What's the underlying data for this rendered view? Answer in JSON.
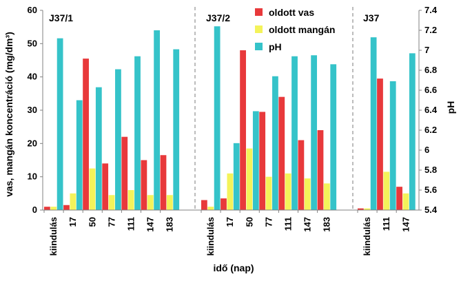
{
  "chart_data": {
    "type": "bar",
    "colors": {
      "oldott_vas": "#e8393b",
      "oldott_mangan": "#f4f35a",
      "ph": "#35c3c9"
    },
    "legend_position": "top-right",
    "legend": [
      "oldott vas",
      "oldott mangán",
      "pH"
    ],
    "xlabel": "idő (nap)",
    "ylabel_left": "vas, mangán koncentráció (mg/dm³)",
    "ylabel_right": "pH",
    "ylim_left": [
      0,
      60
    ],
    "ylim_right": [
      5.4,
      7.4
    ],
    "yticks_left": [
      "0",
      "10",
      "20",
      "30",
      "40",
      "50",
      "60"
    ],
    "yticks_right": [
      "5.4",
      "5.6",
      "5.8",
      "6",
      "6.2",
      "6.4",
      "6.6",
      "6.8",
      "7",
      "7.2",
      "7.4"
    ],
    "panels": [
      {
        "label": "J37/1",
        "categories": [
          "kiindulás",
          "17",
          "50",
          "77",
          "111",
          "147",
          "183"
        ],
        "oldott_vas": [
          1,
          1.5,
          45.5,
          14,
          22,
          15,
          16.5
        ],
        "oldott_mangan": [
          1,
          5,
          12.5,
          4.5,
          6,
          4.5,
          4.5
        ],
        "ph": [
          7.12,
          6.5,
          6.63,
          6.81,
          6.94,
          7.2,
          7.01
        ]
      },
      {
        "label": "J37/2",
        "categories": [
          "kiindulás",
          "17",
          "50",
          "77",
          "111",
          "147",
          "183"
        ],
        "oldott_vas": [
          3,
          3.5,
          48,
          29.5,
          34,
          21,
          24
        ],
        "oldott_mangan": [
          1,
          11,
          18.5,
          10,
          11,
          9.5,
          8
        ],
        "ph": [
          7.24,
          6.07,
          6.39,
          6.74,
          6.94,
          6.95,
          6.86
        ]
      },
      {
        "label": "J37",
        "categories": [
          "kiindulás",
          "111",
          "147"
        ],
        "oldott_vas": [
          0.5,
          39.5,
          7
        ],
        "oldott_mangan": [
          0.5,
          11.5,
          5
        ],
        "ph": [
          7.13,
          6.69,
          6.97
        ]
      }
    ]
  }
}
